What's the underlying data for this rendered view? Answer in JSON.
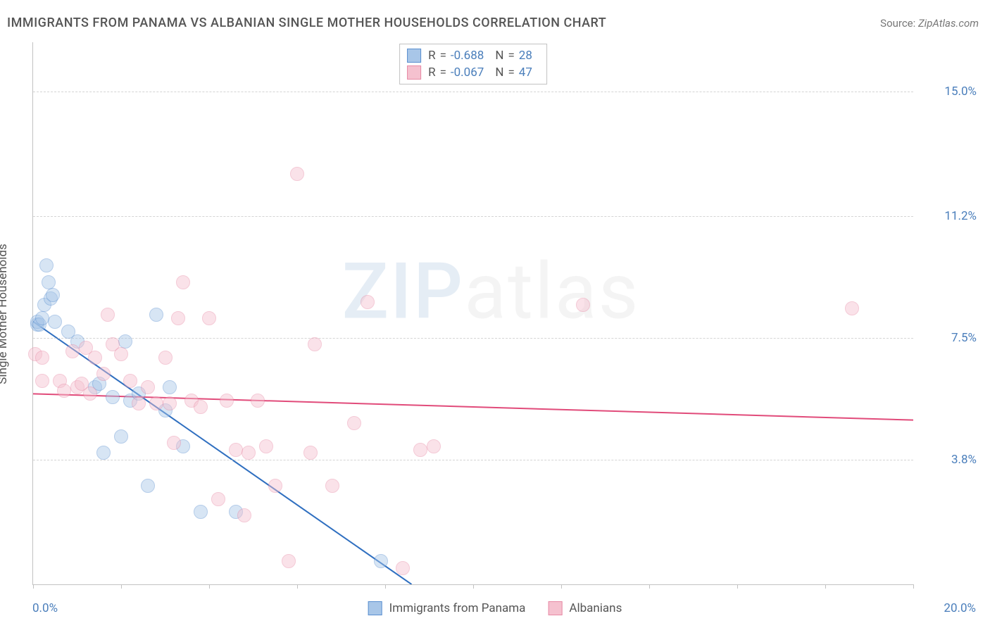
{
  "title": "IMMIGRANTS FROM PANAMA VS ALBANIAN SINGLE MOTHER HOUSEHOLDS CORRELATION CHART",
  "source_label": "Source:",
  "source_value": "ZipAtlas.com",
  "watermark_a": "ZIP",
  "watermark_b": "atlas",
  "yaxis_title": "Single Mother Households",
  "chart": {
    "type": "scatter",
    "background_color": "#ffffff",
    "grid_color": "#d4d4d4",
    "axis_color": "#c2c2c2",
    "tick_label_color": "#4a7ebb",
    "tick_fontsize": 17,
    "xlim": [
      0.0,
      20.0
    ],
    "ylim": [
      0.0,
      16.5
    ],
    "x_ticks": [
      0.0,
      2.0,
      4.0,
      6.0,
      8.0,
      10.0,
      12.0,
      14.0,
      16.0,
      18.0,
      20.0
    ],
    "x_min_label": "0.0%",
    "x_max_label": "20.0%",
    "y_gridlines": [
      {
        "y": 3.8,
        "label": "3.8%"
      },
      {
        "y": 7.5,
        "label": "7.5%"
      },
      {
        "y": 11.2,
        "label": "11.2%"
      },
      {
        "y": 15.0,
        "label": "15.0%"
      }
    ],
    "title_fontsize": 18,
    "marker_radius": 10,
    "marker_opacity": 0.45
  },
  "series": [
    {
      "key": "panama",
      "label": "Immigrants from Panama",
      "fill": "#a8c6e8",
      "stroke": "#5a8fd0",
      "trend_color": "#2f6fc0",
      "trend_width": 2,
      "R": "-0.688",
      "N": "28",
      "trend": {
        "x1": 0.0,
        "y1": 8.0,
        "x2": 8.6,
        "y2": 0.0
      },
      "points": [
        {
          "x": 0.1,
          "y": 7.9
        },
        {
          "x": 0.1,
          "y": 8.0
        },
        {
          "x": 0.15,
          "y": 7.9
        },
        {
          "x": 0.2,
          "y": 8.1
        },
        {
          "x": 0.25,
          "y": 8.5
        },
        {
          "x": 0.3,
          "y": 9.7
        },
        {
          "x": 0.35,
          "y": 9.2
        },
        {
          "x": 0.4,
          "y": 8.7
        },
        {
          "x": 0.45,
          "y": 8.8
        },
        {
          "x": 0.5,
          "y": 8.0
        },
        {
          "x": 0.8,
          "y": 7.7
        },
        {
          "x": 1.0,
          "y": 7.4
        },
        {
          "x": 1.4,
          "y": 6.0
        },
        {
          "x": 1.5,
          "y": 6.1
        },
        {
          "x": 1.6,
          "y": 4.0
        },
        {
          "x": 1.8,
          "y": 5.7
        },
        {
          "x": 2.0,
          "y": 4.5
        },
        {
          "x": 2.1,
          "y": 7.4
        },
        {
          "x": 2.2,
          "y": 5.6
        },
        {
          "x": 2.4,
          "y": 5.8
        },
        {
          "x": 2.6,
          "y": 3.0
        },
        {
          "x": 2.8,
          "y": 8.2
        },
        {
          "x": 3.0,
          "y": 5.3
        },
        {
          "x": 3.1,
          "y": 6.0
        },
        {
          "x": 3.4,
          "y": 4.2
        },
        {
          "x": 3.8,
          "y": 2.2
        },
        {
          "x": 4.6,
          "y": 2.2
        },
        {
          "x": 7.9,
          "y": 0.7
        }
      ]
    },
    {
      "key": "albanians",
      "label": "Albanians",
      "fill": "#f5c1cf",
      "stroke": "#e78aa5",
      "trend_color": "#e14b7a",
      "trend_width": 2,
      "R": "-0.067",
      "N": "47",
      "trend": {
        "x1": 0.0,
        "y1": 5.8,
        "x2": 20.0,
        "y2": 5.0
      },
      "points": [
        {
          "x": 0.05,
          "y": 7.0
        },
        {
          "x": 0.2,
          "y": 6.2
        },
        {
          "x": 0.2,
          "y": 6.9
        },
        {
          "x": 0.6,
          "y": 6.2
        },
        {
          "x": 0.7,
          "y": 5.9
        },
        {
          "x": 0.9,
          "y": 7.1
        },
        {
          "x": 1.0,
          "y": 6.0
        },
        {
          "x": 1.1,
          "y": 6.1
        },
        {
          "x": 1.3,
          "y": 5.8
        },
        {
          "x": 1.2,
          "y": 7.2
        },
        {
          "x": 1.4,
          "y": 6.9
        },
        {
          "x": 1.6,
          "y": 6.4
        },
        {
          "x": 1.7,
          "y": 8.2
        },
        {
          "x": 1.8,
          "y": 7.3
        },
        {
          "x": 2.0,
          "y": 7.0
        },
        {
          "x": 2.2,
          "y": 6.2
        },
        {
          "x": 2.4,
          "y": 5.5
        },
        {
          "x": 2.6,
          "y": 6.0
        },
        {
          "x": 2.8,
          "y": 5.5
        },
        {
          "x": 3.0,
          "y": 6.9
        },
        {
          "x": 3.1,
          "y": 5.5
        },
        {
          "x": 3.2,
          "y": 4.3
        },
        {
          "x": 3.3,
          "y": 8.1
        },
        {
          "x": 3.4,
          "y": 9.2
        },
        {
          "x": 3.6,
          "y": 5.6
        },
        {
          "x": 3.8,
          "y": 5.4
        },
        {
          "x": 4.0,
          "y": 8.1
        },
        {
          "x": 4.2,
          "y": 2.6
        },
        {
          "x": 4.4,
          "y": 5.6
        },
        {
          "x": 4.6,
          "y": 4.1
        },
        {
          "x": 4.8,
          "y": 2.1
        },
        {
          "x": 4.9,
          "y": 4.0
        },
        {
          "x": 5.1,
          "y": 5.6
        },
        {
          "x": 5.3,
          "y": 4.2
        },
        {
          "x": 5.5,
          "y": 3.0
        },
        {
          "x": 5.8,
          "y": 0.7
        },
        {
          "x": 6.0,
          "y": 12.5
        },
        {
          "x": 6.3,
          "y": 4.0
        },
        {
          "x": 6.4,
          "y": 7.3
        },
        {
          "x": 6.8,
          "y": 3.0
        },
        {
          "x": 7.3,
          "y": 4.9
        },
        {
          "x": 7.6,
          "y": 8.6
        },
        {
          "x": 8.4,
          "y": 0.5
        },
        {
          "x": 8.8,
          "y": 4.1
        },
        {
          "x": 9.1,
          "y": 4.2
        },
        {
          "x": 12.5,
          "y": 8.5
        },
        {
          "x": 18.6,
          "y": 8.4
        }
      ]
    }
  ],
  "stats_box": {
    "R_label": "R",
    "N_label": "N",
    "eq": "="
  }
}
